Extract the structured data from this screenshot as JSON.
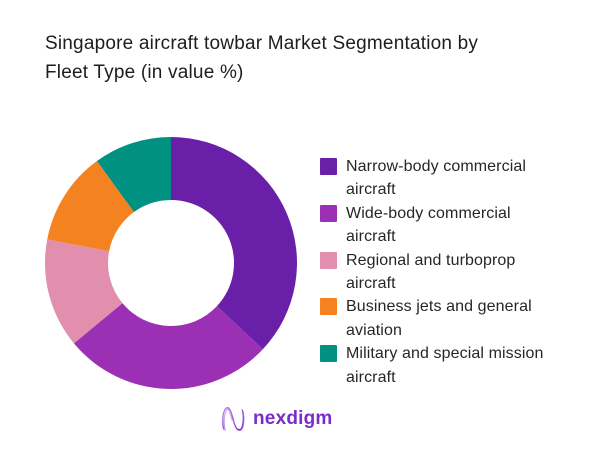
{
  "header": {
    "title_line1": "Singapore aircraft towbar Market Segmentation by",
    "title_line2": "Fleet Type (in value %)"
  },
  "chart_data": {
    "type": "pie",
    "variant": "donut",
    "title": "Singapore aircraft towbar Market Segmentation by Fleet Type (in value %)",
    "unit": "% of value",
    "start_angle_deg": 0,
    "direction": "clockwise",
    "inner_radius_ratio": 0.5,
    "data_labels_shown": false,
    "legend_position": "right",
    "segments": [
      {
        "label": "Narrow-body commercial aircraft",
        "value": 37,
        "color": "#6a1fa8"
      },
      {
        "label": "Wide-body commercial aircraft",
        "value": 27,
        "color": "#9c30b4"
      },
      {
        "label": "Regional and turboprop aircraft",
        "value": 14,
        "color": "#e18fac"
      },
      {
        "label": "Business jets and general aviation",
        "value": 12,
        "color": "#f58220"
      },
      {
        "label": "Military and special mission aircraft",
        "value": 10,
        "color": "#009183"
      }
    ]
  },
  "legend": {
    "items": [
      {
        "lines": [
          "Narrow-body commercial",
          "aircraft"
        ]
      },
      {
        "lines": [
          "Wide-body commercial",
          "aircraft"
        ]
      },
      {
        "lines": [
          "Regional and turboprop",
          "aircraft"
        ]
      },
      {
        "lines": [
          "Business jets and general",
          "aviation"
        ]
      },
      {
        "lines": [
          "Military and special mission",
          "aircraft"
        ]
      }
    ]
  },
  "footer": {
    "brand": "nexdigm",
    "brand_color": "#7b2cc9"
  }
}
